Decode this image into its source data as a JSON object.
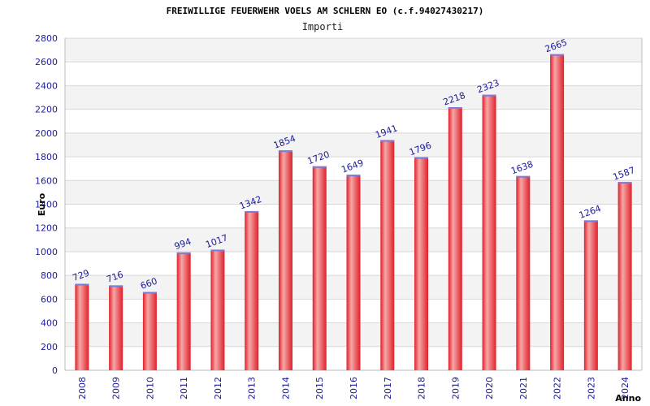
{
  "chart_data": {
    "type": "bar",
    "title": "FREIWILLIGE FEUERWEHR VOELS AM SCHLERN EO (c.f.94027430217)",
    "subtitle": "Importi",
    "xlabel": "Anno",
    "ylabel": "Euro",
    "categories": [
      "2008",
      "2009",
      "2010",
      "2011",
      "2012",
      "2013",
      "2014",
      "2015",
      "2016",
      "2017",
      "2018",
      "2019",
      "2020",
      "2021",
      "2022",
      "2023",
      "2024"
    ],
    "values": [
      729,
      716,
      660,
      994,
      1017,
      1342,
      1854,
      1720,
      1649,
      1941,
      1796,
      2218,
      2323,
      1638,
      2665,
      1264,
      1587
    ],
    "ylim": [
      0,
      2800
    ],
    "yticks": [
      0,
      200,
      400,
      600,
      800,
      1000,
      1200,
      1400,
      1600,
      1800,
      2000,
      2200,
      2400,
      2600,
      2800
    ],
    "grid": true,
    "legend": "none",
    "colors": {
      "bar": "#e0202a",
      "bar_highlight": "#f6a7a7",
      "bar_top": "#7b7bd8",
      "band_alt": "#f3f3f3",
      "gridline": "#d8d8d8",
      "axis": "#bcbcbc",
      "label": "#1a1a9c"
    }
  }
}
